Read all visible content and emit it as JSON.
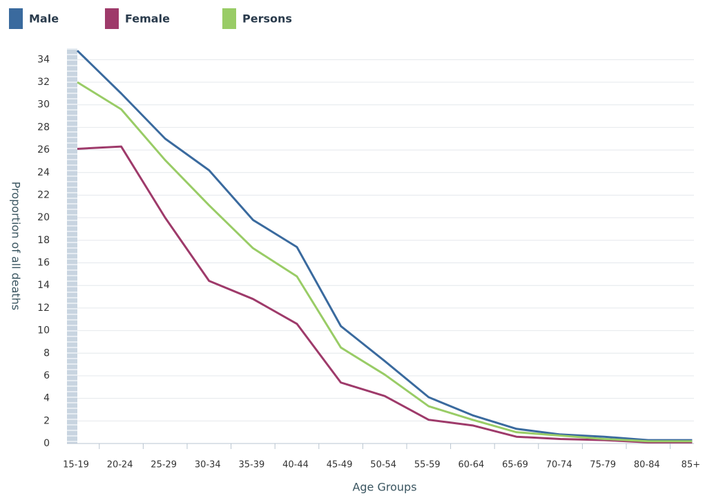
{
  "chart_data": {
    "type": "line",
    "y_label": "Proportion of all deaths",
    "x_label": "Age Groups",
    "categories": [
      "15-19",
      "20-24",
      "25-29",
      "30-34",
      "35-39",
      "40-44",
      "45-49",
      "50-54",
      "55-59",
      "60-64",
      "65-69",
      "70-74",
      "75-79",
      "80-84",
      "85+"
    ],
    "series": [
      {
        "name": "Male",
        "color": "#3a6a9e",
        "values": [
          34.8,
          31.0,
          27.0,
          24.2,
          19.8,
          17.4,
          10.4,
          7.3,
          4.1,
          2.5,
          1.3,
          0.8,
          0.6,
          0.3,
          0.3
        ]
      },
      {
        "name": "Female",
        "color": "#9e3a6a",
        "values": [
          26.1,
          26.3,
          20.0,
          14.4,
          12.8,
          10.6,
          5.4,
          4.2,
          2.1,
          1.6,
          0.6,
          0.4,
          0.3,
          0.1,
          0.1
        ]
      },
      {
        "name": "Persons",
        "color": "#99cc66",
        "values": [
          32.0,
          29.6,
          25.1,
          21.1,
          17.3,
          14.8,
          8.5,
          6.1,
          3.3,
          2.1,
          1.0,
          0.7,
          0.4,
          0.2,
          0.2
        ]
      }
    ],
    "ylim": [
      0,
      35
    ],
    "yticks": [
      0,
      2,
      4,
      6,
      8,
      10,
      12,
      14,
      16,
      18,
      20,
      22,
      24,
      26,
      28,
      30,
      32,
      34
    ],
    "grid": true
  }
}
